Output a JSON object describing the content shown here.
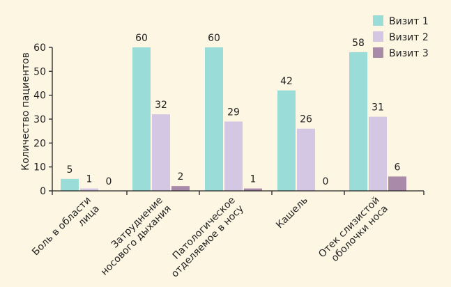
{
  "chart_data": {
    "type": "bar",
    "title": "",
    "xlabel": "",
    "ylabel": "Количество пациентов",
    "ylim": [
      0,
      60
    ],
    "yticks": [
      0,
      10,
      20,
      30,
      40,
      50,
      60
    ],
    "grid": false,
    "legend_position": "top-right",
    "categories": [
      [
        "Боль в области",
        "лица"
      ],
      [
        "Затруднение",
        "носового дыхания"
      ],
      [
        "Патологическое",
        "отделяемое в носу"
      ],
      [
        "Кашель"
      ],
      [
        "Отек слизистой",
        "оболочки носа"
      ]
    ],
    "series": [
      {
        "name": "Визит 1",
        "color": "#9adcd8",
        "values": [
          5,
          60,
          60,
          42,
          58
        ]
      },
      {
        "name": "Визит 2",
        "color": "#d3c7e3",
        "values": [
          1,
          32,
          29,
          26,
          31
        ]
      },
      {
        "name": "Визит 3",
        "color": "#a98aa8",
        "values": [
          0,
          2,
          1,
          0,
          6
        ]
      }
    ]
  }
}
